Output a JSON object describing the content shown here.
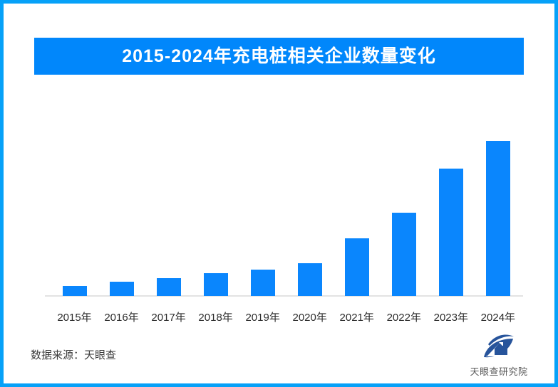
{
  "page": {
    "border_color": "#06a1f8",
    "background": "#ffffff"
  },
  "title_banner": {
    "text": "2015-2024年充电桩相关企业数量变化",
    "bg_color": "#0187fb",
    "text_color": "#ffffff"
  },
  "chart_data": {
    "type": "bar",
    "title": "2015-2024年充电桩相关企业数量变化",
    "categories": [
      "2015年",
      "2016年",
      "2017年",
      "2018年",
      "2019年",
      "2020年",
      "2021年",
      "2022年",
      "2023年",
      "2024年"
    ],
    "values": [
      6.6,
      9.1,
      11.4,
      14.8,
      16.8,
      21.1,
      37.0,
      53.8,
      82.1,
      100
    ],
    "units": "relative index, 2024 = 100 (chart shows no numeric axis or data labels)",
    "xlabel": "",
    "ylabel": "",
    "ylim": [
      0,
      100
    ],
    "grid": false,
    "legend": false,
    "bar_color": "#0a86fd",
    "axis_line_color": "#e3e3e3",
    "tick_label_color": "#2b2b2b"
  },
  "footer": {
    "source_text": "数据来源：天眼查",
    "logo_text": "天眼查研究院",
    "logo_color": "#27549b",
    "logo_text_color": "#585858"
  }
}
